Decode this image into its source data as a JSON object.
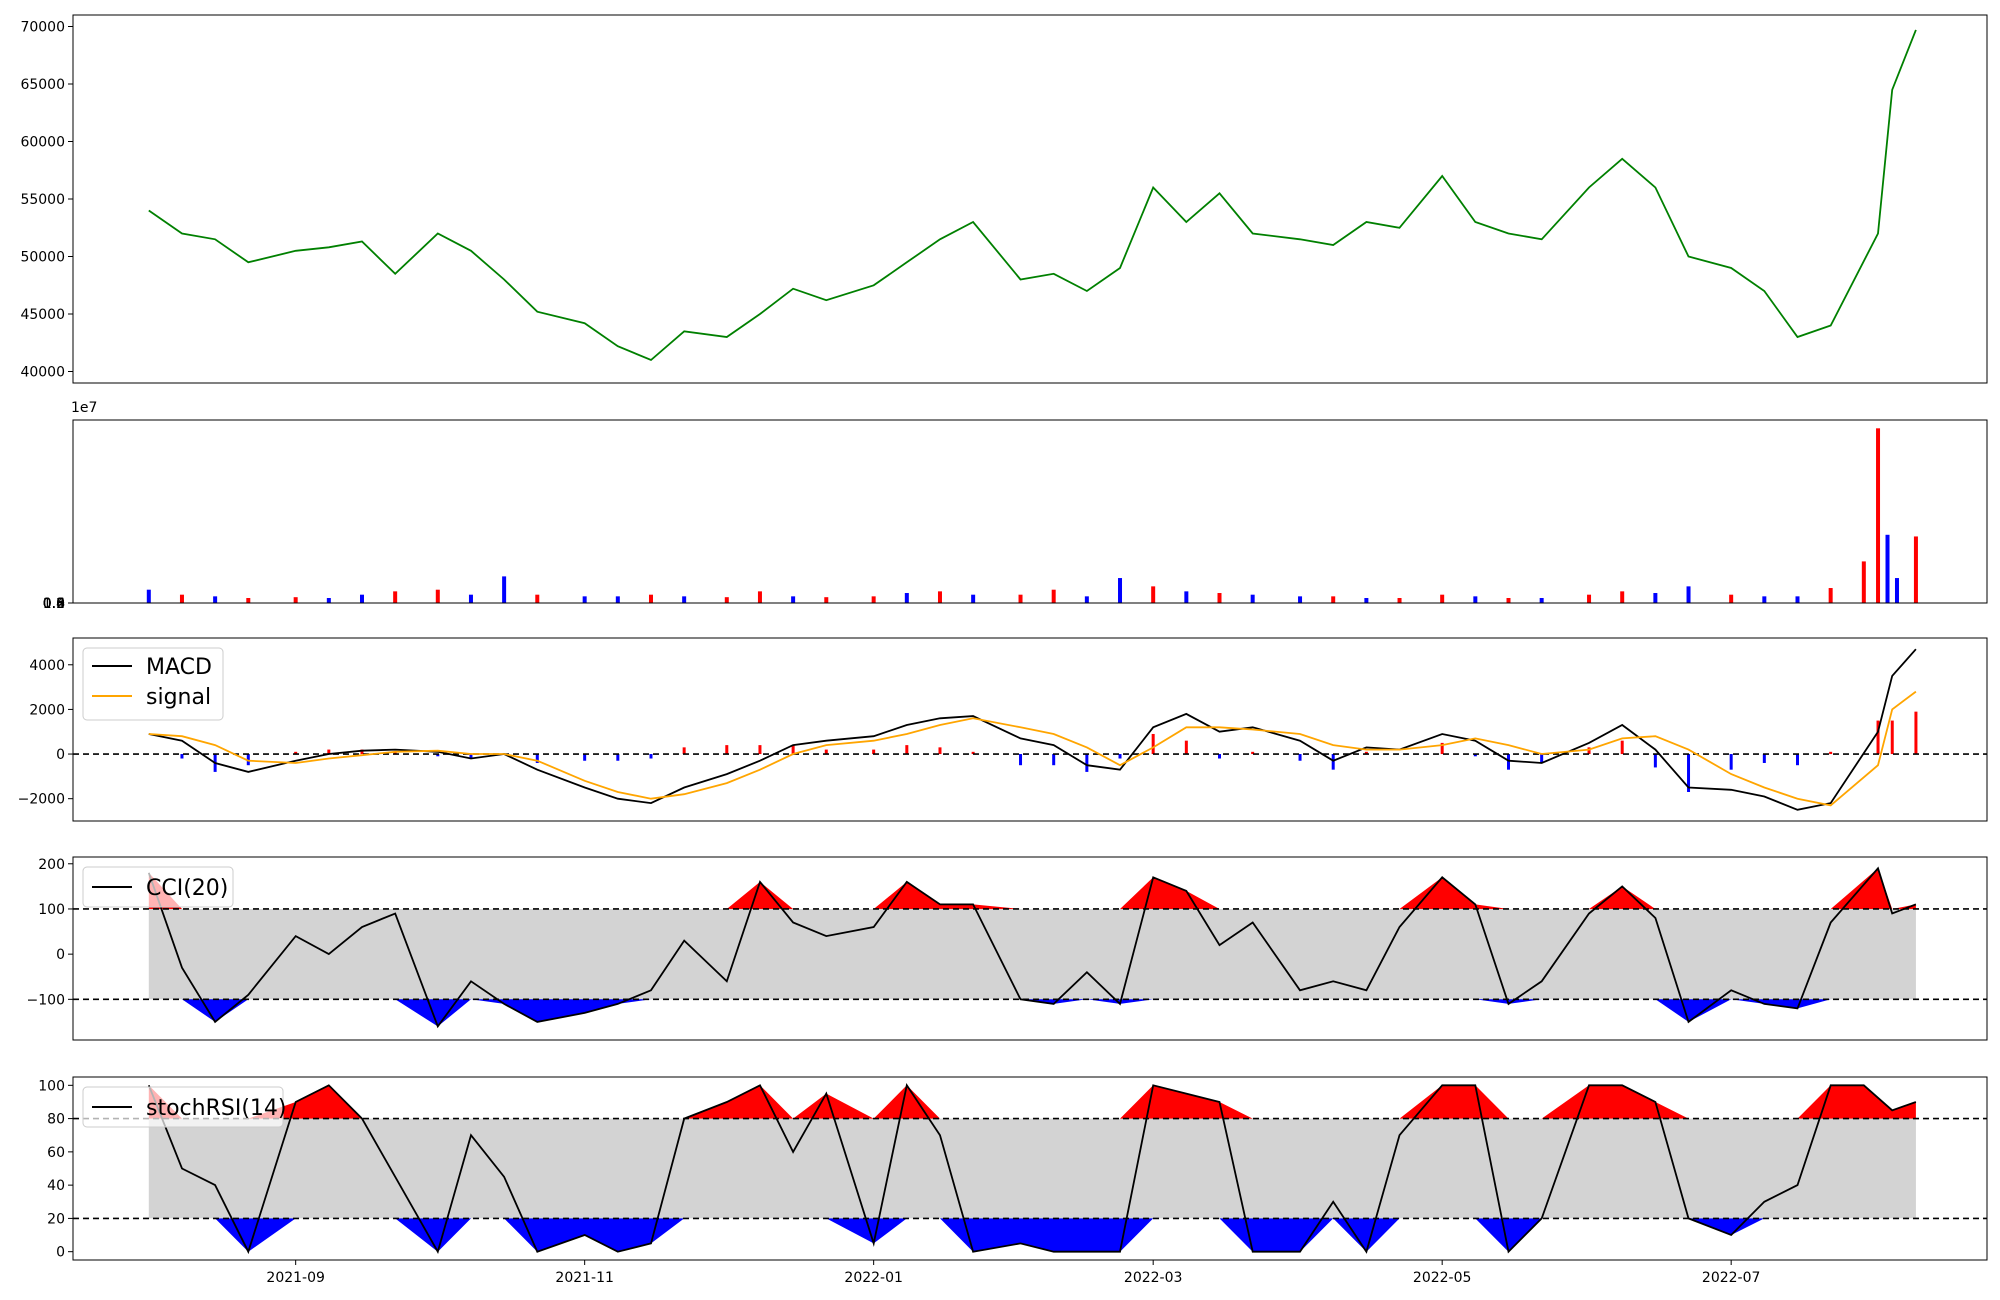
{
  "chart_data": [
    {
      "panel": "price",
      "type": "line",
      "ylim": [
        39000,
        71000
      ],
      "yticks": [
        "40000",
        "45000",
        "50000",
        "55000",
        "60000",
        "65000",
        "70000"
      ],
      "colors": {
        "line": "#008000"
      },
      "x": [
        "2021-08-01",
        "2021-08-08",
        "2021-08-15",
        "2021-08-22",
        "2021-09-01",
        "2021-09-08",
        "2021-09-15",
        "2021-09-22",
        "2021-10-01",
        "2021-10-08",
        "2021-10-15",
        "2021-10-22",
        "2021-11-01",
        "2021-11-08",
        "2021-11-15",
        "2021-11-22",
        "2021-12-01",
        "2021-12-08",
        "2021-12-15",
        "2021-12-22",
        "2022-01-01",
        "2022-01-08",
        "2022-01-15",
        "2022-01-22",
        "2022-02-01",
        "2022-02-08",
        "2022-02-15",
        "2022-02-22",
        "2022-03-01",
        "2022-03-08",
        "2022-03-15",
        "2022-03-22",
        "2022-04-01",
        "2022-04-08",
        "2022-04-15",
        "2022-04-22",
        "2022-05-01",
        "2022-05-08",
        "2022-05-15",
        "2022-05-22",
        "2022-06-01",
        "2022-06-08",
        "2022-06-15",
        "2022-06-22",
        "2022-07-01",
        "2022-07-08",
        "2022-07-15",
        "2022-07-22",
        "2022-08-01",
        "2022-08-04",
        "2022-08-09"
      ],
      "values": [
        54000,
        52000,
        51500,
        49500,
        50500,
        50800,
        51300,
        48500,
        52000,
        50500,
        48000,
        45200,
        44200,
        42200,
        41000,
        43500,
        43000,
        45000,
        47200,
        46200,
        47500,
        49500,
        51500,
        53000,
        48000,
        48500,
        47000,
        49000,
        56000,
        53000,
        55500,
        52000,
        51500,
        51000,
        53000,
        52500,
        57000,
        53000,
        52000,
        51500,
        56000,
        58500,
        56000,
        50000,
        49000,
        47000,
        43000,
        44000,
        52000,
        64500,
        69700
      ]
    },
    {
      "panel": "volume",
      "type": "bar",
      "ylim": [
        0,
        11000000
      ],
      "yticks": [
        "0.0",
        "0.2",
        "0.4",
        "0.6",
        "0.8",
        "1.0"
      ],
      "offset_label": "1e7",
      "colors": {
        "up": "#ff0000",
        "down": "#0000ff"
      },
      "x": [
        "2021-08-01",
        "2021-08-08",
        "2021-08-15",
        "2021-08-22",
        "2021-09-01",
        "2021-09-08",
        "2021-09-15",
        "2021-09-22",
        "2021-10-01",
        "2021-10-08",
        "2021-10-15",
        "2021-10-22",
        "2021-11-01",
        "2021-11-08",
        "2021-11-15",
        "2021-11-22",
        "2021-12-01",
        "2021-12-08",
        "2021-12-15",
        "2021-12-22",
        "2022-01-01",
        "2022-01-08",
        "2022-01-15",
        "2022-01-22",
        "2022-02-01",
        "2022-02-08",
        "2022-02-15",
        "2022-02-22",
        "2022-03-01",
        "2022-03-08",
        "2022-03-15",
        "2022-03-22",
        "2022-04-01",
        "2022-04-08",
        "2022-04-15",
        "2022-04-22",
        "2022-05-01",
        "2022-05-08",
        "2022-05-15",
        "2022-05-22",
        "2022-06-01",
        "2022-06-08",
        "2022-06-15",
        "2022-06-22",
        "2022-07-01",
        "2022-07-08",
        "2022-07-15",
        "2022-07-22",
        "2022-07-29",
        "2022-08-01",
        "2022-08-03",
        "2022-08-05",
        "2022-08-09"
      ],
      "values": [
        800000,
        500000,
        400000,
        300000,
        350000,
        300000,
        500000,
        700000,
        800000,
        500000,
        1600000,
        500000,
        400000,
        400000,
        500000,
        400000,
        350000,
        700000,
        400000,
        350000,
        400000,
        600000,
        700000,
        500000,
        500000,
        800000,
        400000,
        1500000,
        1000000,
        700000,
        600000,
        500000,
        400000,
        400000,
        300000,
        300000,
        500000,
        400000,
        300000,
        300000,
        500000,
        700000,
        600000,
        1000000,
        500000,
        400000,
        400000,
        900000,
        2500000,
        10500000,
        4100000,
        1500000,
        4000000
      ],
      "direction": [
        "down",
        "up",
        "down",
        "up",
        "up",
        "down",
        "down",
        "up",
        "up",
        "down",
        "down",
        "up",
        "down",
        "down",
        "up",
        "down",
        "up",
        "up",
        "down",
        "up",
        "up",
        "down",
        "up",
        "down",
        "up",
        "up",
        "down",
        "down",
        "up",
        "down",
        "up",
        "down",
        "down",
        "up",
        "down",
        "up",
        "up",
        "down",
        "up",
        "down",
        "up",
        "up",
        "down",
        "down",
        "up",
        "down",
        "down",
        "up",
        "up",
        "up",
        "down",
        "down",
        "up"
      ]
    },
    {
      "panel": "macd",
      "type": "line",
      "ylim": [
        -3000,
        5200
      ],
      "yticks": [
        "-2000",
        "0",
        "2000",
        "4000"
      ],
      "legend": [
        "MACD",
        "signal"
      ],
      "legend_position": "upper-left",
      "colors": {
        "macd": "#000000",
        "signal": "#ffa500",
        "hist_pos": "#ff0000",
        "hist_neg": "#0000ff",
        "zero_line": "#000000"
      },
      "x": [
        "2021-08-01",
        "2021-08-08",
        "2021-08-15",
        "2021-08-22",
        "2021-09-01",
        "2021-09-08",
        "2021-09-15",
        "2021-09-22",
        "2021-10-01",
        "2021-10-08",
        "2021-10-15",
        "2021-10-22",
        "2021-11-01",
        "2021-11-08",
        "2021-11-15",
        "2021-11-22",
        "2021-12-01",
        "2021-12-08",
        "2021-12-15",
        "2021-12-22",
        "2022-01-01",
        "2022-01-08",
        "2022-01-15",
        "2022-01-22",
        "2022-02-01",
        "2022-02-08",
        "2022-02-15",
        "2022-02-22",
        "2022-03-01",
        "2022-03-08",
        "2022-03-15",
        "2022-03-22",
        "2022-04-01",
        "2022-04-08",
        "2022-04-15",
        "2022-04-22",
        "2022-05-01",
        "2022-05-08",
        "2022-05-15",
        "2022-05-22",
        "2022-06-01",
        "2022-06-08",
        "2022-06-15",
        "2022-06-22",
        "2022-07-01",
        "2022-07-08",
        "2022-07-15",
        "2022-07-22",
        "2022-08-01",
        "2022-08-04",
        "2022-08-09"
      ],
      "series": [
        {
          "name": "MACD",
          "values": [
            900,
            600,
            -400,
            -800,
            -300,
            0,
            150,
            200,
            100,
            -200,
            0,
            -700,
            -1500,
            -2000,
            -2200,
            -1500,
            -900,
            -300,
            400,
            600,
            800,
            1300,
            1600,
            1700,
            700,
            400,
            -500,
            -700,
            1200,
            1800,
            1000,
            1200,
            600,
            -300,
            300,
            200,
            900,
            600,
            -300,
            -400,
            500,
            1300,
            200,
            -1500,
            -1600,
            -1900,
            -2500,
            -2200,
            1000,
            3500,
            4700
          ]
        },
        {
          "name": "signal",
          "values": [
            900,
            800,
            400,
            -300,
            -400,
            -200,
            -50,
            100,
            150,
            0,
            0,
            -300,
            -1200,
            -1700,
            -2000,
            -1800,
            -1300,
            -700,
            0,
            400,
            600,
            900,
            1300,
            1600,
            1200,
            900,
            300,
            -500,
            300,
            1200,
            1200,
            1100,
            900,
            400,
            200,
            200,
            400,
            700,
            400,
            0,
            200,
            700,
            800,
            200,
            -900,
            -1500,
            -2000,
            -2300,
            -500,
            2000,
            2800
          ]
        }
      ],
      "histogram": [
        0,
        -200,
        -800,
        -500,
        100,
        200,
        200,
        100,
        -100,
        -200,
        0,
        -400,
        -300,
        -300,
        -200,
        300,
        400,
        400,
        400,
        200,
        200,
        400,
        300,
        100,
        -500,
        -500,
        -800,
        -200,
        900,
        600,
        -200,
        100,
        -300,
        -700,
        100,
        0,
        500,
        -100,
        -700,
        -400,
        300,
        600,
        -600,
        -1700,
        -700,
        -400,
        -500,
        100,
        1500,
        1500,
        1900
      ]
    },
    {
      "panel": "cci",
      "type": "line",
      "ylim": [
        -190,
        215
      ],
      "yticks": [
        "-100",
        "0",
        "100",
        "200"
      ],
      "legend": [
        "CCI(20)"
      ],
      "legend_position": "upper-left",
      "thresholds": [
        100,
        -100
      ],
      "colors": {
        "line": "#000000",
        "band": "#d3d3d3",
        "over": "#ff0000",
        "under": "#0000ff"
      },
      "x": [
        "2021-08-01",
        "2021-08-08",
        "2021-08-15",
        "2021-08-22",
        "2021-09-01",
        "2021-09-08",
        "2021-09-15",
        "2021-09-22",
        "2021-10-01",
        "2021-10-08",
        "2021-10-15",
        "2021-10-22",
        "2021-11-01",
        "2021-11-08",
        "2021-11-15",
        "2021-11-22",
        "2021-12-01",
        "2021-12-08",
        "2021-12-15",
        "2021-12-22",
        "2022-01-01",
        "2022-01-08",
        "2022-01-15",
        "2022-01-22",
        "2022-02-01",
        "2022-02-08",
        "2022-02-15",
        "2022-02-22",
        "2022-03-01",
        "2022-03-08",
        "2022-03-15",
        "2022-03-22",
        "2022-04-01",
        "2022-04-08",
        "2022-04-15",
        "2022-04-22",
        "2022-05-01",
        "2022-05-08",
        "2022-05-15",
        "2022-05-22",
        "2022-06-01",
        "2022-06-08",
        "2022-06-15",
        "2022-06-22",
        "2022-07-01",
        "2022-07-08",
        "2022-07-15",
        "2022-07-22",
        "2022-08-01",
        "2022-08-04",
        "2022-08-09"
      ],
      "values": [
        180,
        -30,
        -150,
        -90,
        40,
        0,
        60,
        90,
        -160,
        -60,
        -110,
        -150,
        -130,
        -110,
        -80,
        30,
        -60,
        160,
        70,
        40,
        60,
        160,
        110,
        110,
        -100,
        -110,
        -40,
        -110,
        170,
        140,
        20,
        70,
        -80,
        -60,
        -80,
        60,
        170,
        110,
        -110,
        -60,
        90,
        150,
        80,
        -150,
        -80,
        -110,
        -120,
        70,
        190,
        90,
        110
      ]
    },
    {
      "panel": "stochrsi",
      "type": "line",
      "ylim": [
        -5,
        105
      ],
      "yticks": [
        "0",
        "20",
        "40",
        "60",
        "80",
        "100"
      ],
      "legend": [
        "stochRSI(14)"
      ],
      "legend_position": "upper-left",
      "thresholds": [
        80,
        20
      ],
      "colors": {
        "line": "#000000",
        "band": "#d3d3d3",
        "over": "#ff0000",
        "under": "#0000ff"
      },
      "xticks": [
        "2021-09",
        "2021-11",
        "2022-01",
        "2022-03",
        "2022-05",
        "2022-07"
      ],
      "x": [
        "2021-08-01",
        "2021-08-08",
        "2021-08-15",
        "2021-08-22",
        "2021-09-01",
        "2021-09-08",
        "2021-09-15",
        "2021-09-22",
        "2021-10-01",
        "2021-10-08",
        "2021-10-15",
        "2021-10-22",
        "2021-11-01",
        "2021-11-08",
        "2021-11-15",
        "2021-11-22",
        "2021-12-01",
        "2021-12-08",
        "2021-12-15",
        "2021-12-22",
        "2022-01-01",
        "2022-01-08",
        "2022-01-15",
        "2022-01-22",
        "2022-02-01",
        "2022-02-08",
        "2022-02-15",
        "2022-02-22",
        "2022-03-01",
        "2022-03-08",
        "2022-03-15",
        "2022-03-22",
        "2022-04-01",
        "2022-04-08",
        "2022-04-15",
        "2022-04-22",
        "2022-05-01",
        "2022-05-08",
        "2022-05-15",
        "2022-05-22",
        "2022-06-01",
        "2022-06-08",
        "2022-06-15",
        "2022-06-22",
        "2022-07-01",
        "2022-07-08",
        "2022-07-15",
        "2022-07-22",
        "2022-07-29",
        "2022-08-04",
        "2022-08-09"
      ],
      "values": [
        100,
        50,
        40,
        0,
        90,
        100,
        80,
        45,
        0,
        70,
        45,
        0,
        10,
        0,
        5,
        80,
        90,
        100,
        60,
        95,
        5,
        100,
        70,
        0,
        5,
        0,
        0,
        0,
        100,
        95,
        90,
        0,
        0,
        30,
        0,
        70,
        100,
        100,
        0,
        20,
        100,
        100,
        90,
        20,
        10,
        30,
        40,
        100,
        100,
        85,
        90
      ]
    }
  ]
}
